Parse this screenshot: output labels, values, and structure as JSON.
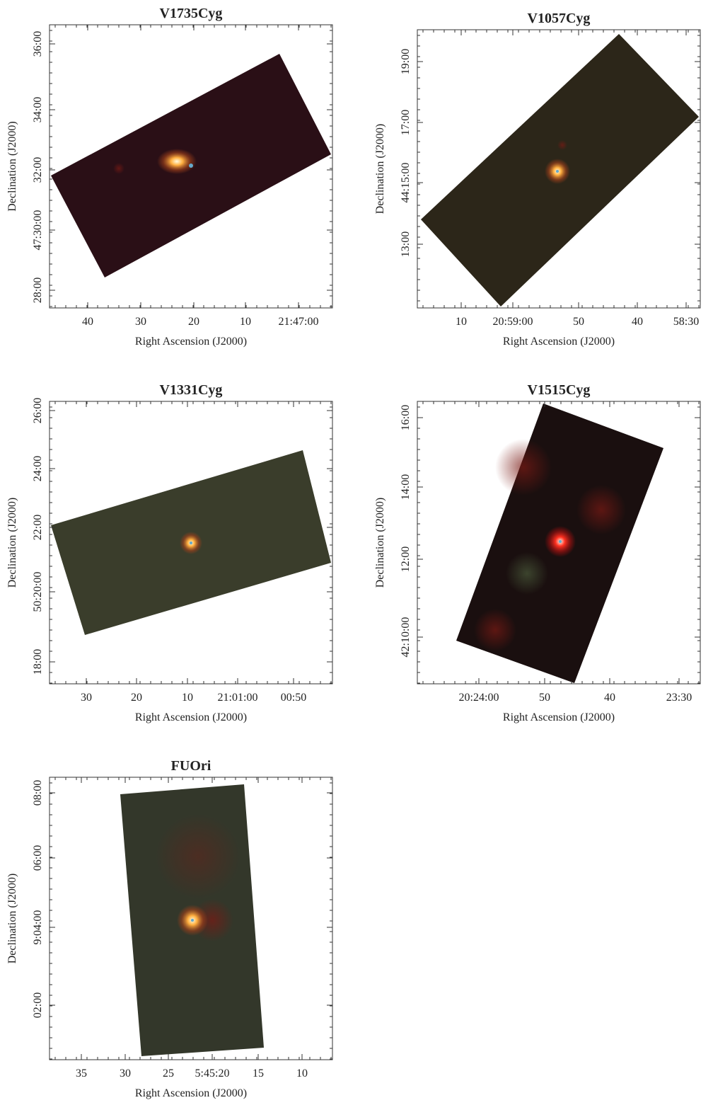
{
  "panels": [
    {
      "title": "V1735Cyg",
      "xlabel": "Right Ascension (J2000)",
      "ylabel": "Declination (J2000)",
      "xticks": [
        "40",
        "30",
        "20",
        "10",
        "21:47:00"
      ],
      "yticks": [
        "36:00",
        "34:00",
        "32:00",
        "47:30:00",
        "28:00"
      ]
    },
    {
      "title": "V1057Cyg",
      "xlabel": "Right Ascension (J2000)",
      "ylabel": "Declination (J2000)",
      "xticks": [
        "10",
        "20:59:00",
        "50",
        "40",
        "58:30"
      ],
      "yticks": [
        "19:00",
        "17:00",
        "44:15:00",
        "13:00"
      ]
    },
    {
      "title": "V1331Cyg",
      "xlabel": "Right Ascension (J2000)",
      "ylabel": "Declination (J2000)",
      "xticks": [
        "30",
        "20",
        "10",
        "21:01:00",
        "00:50"
      ],
      "yticks": [
        "26:00",
        "24:00",
        "22:00",
        "50:20:00",
        "18:00"
      ]
    },
    {
      "title": "V1515Cyg",
      "xlabel": "Right Ascension (J2000)",
      "ylabel": "Declination (J2000)",
      "xticks": [
        "20:24:00",
        "50",
        "40",
        "23:30"
      ],
      "yticks": [
        "16:00",
        "14:00",
        "12:00",
        "42:10:00"
      ]
    },
    {
      "title": "FUOri",
      "xlabel": "Right Ascension (J2000)",
      "ylabel": "Declination (J2000)",
      "xticks": [
        "35",
        "30",
        "25",
        "5:45:20",
        "15",
        "10"
      ],
      "yticks": [
        "08:00",
        "06:00",
        "9:04:00",
        "02:00"
      ]
    }
  ]
}
